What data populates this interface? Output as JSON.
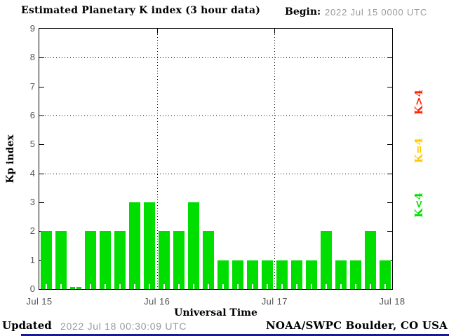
{
  "header": {
    "title": "Estimated Planetary K index (3 hour data)",
    "begin_label": "Begin:",
    "begin_value": "2022 Jul 15 0000 UTC"
  },
  "chart_data": {
    "type": "bar",
    "title": "Estimated Planetary K index (3 hour data)",
    "xlabel": "Universal Time",
    "ylabel": "Kp index",
    "ylim": [
      0,
      9
    ],
    "interval_hours": 3,
    "begin": "2022 Jul 15 0000 UTC",
    "x_ticks": [
      "Jul 15",
      "Jul 16",
      "Jul 17",
      "Jul 18"
    ],
    "y_ticks": [
      0,
      1,
      2,
      3,
      4,
      5,
      6,
      7,
      8,
      9
    ],
    "gridlines_y": [
      4,
      6,
      8
    ],
    "grid": "dotted",
    "bar_color": "#00DE00",
    "values": [
      2,
      2,
      0,
      2,
      2,
      2,
      3,
      3,
      2,
      2,
      3,
      2,
      1,
      1,
      1,
      1,
      1,
      1,
      1,
      2,
      1,
      1,
      2,
      1
    ],
    "legend_position": "right",
    "legend": [
      {
        "label": "K>4",
        "color": "#FF2200"
      },
      {
        "label": "K=4",
        "color": "#FFC800"
      },
      {
        "label": "K<4",
        "color": "#00DE00"
      }
    ]
  },
  "footer": {
    "updated_label": "Updated",
    "updated_value": "2022 Jul 18 00:30:09 UTC",
    "source": "NOAA/SWPC Boulder, CO USA"
  }
}
